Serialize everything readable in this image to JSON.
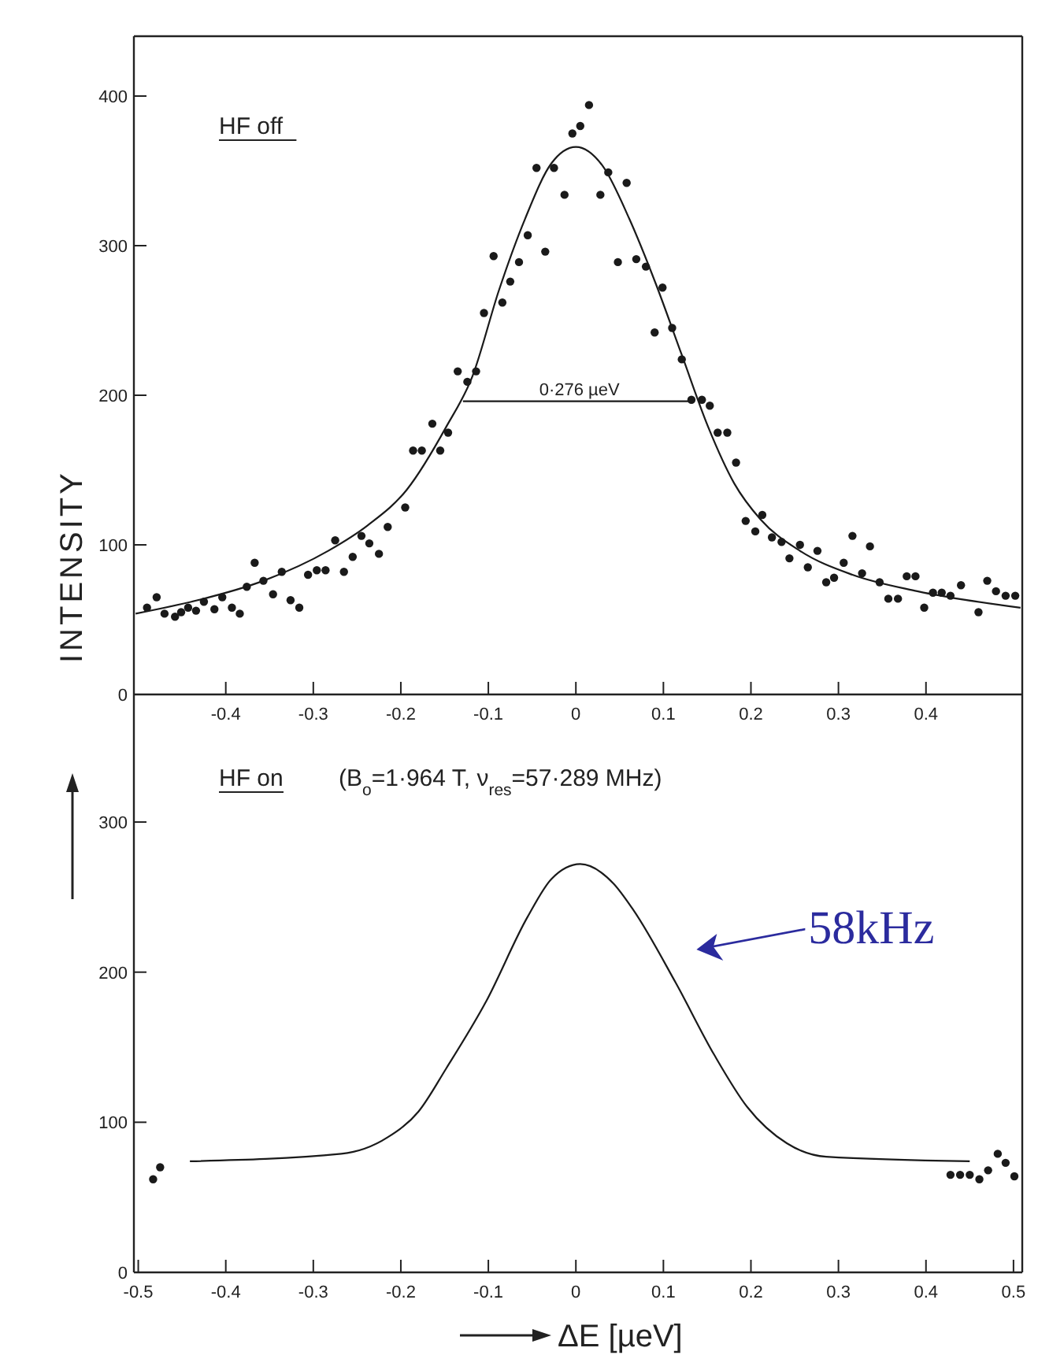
{
  "chart_data": [
    {
      "type": "scatter",
      "title": "HF off",
      "ylabel": "INTENSITY",
      "xlim": [
        -0.505,
        0.51
      ],
      "ylim": [
        0,
        440
      ],
      "xticks": [
        -0.4,
        -0.3,
        -0.2,
        -0.1,
        0,
        0.1,
        0.2,
        0.3,
        0.4
      ],
      "yticks": [
        0,
        100,
        200,
        300,
        400
      ],
      "grid": false,
      "annotations": [
        {
          "text": "0·276 µeV",
          "x": 0.004,
          "y": 196
        }
      ],
      "series": [
        {
          "color": "#1a1a1a",
          "marker": "circle",
          "x": [
            -0.49,
            -0.479,
            -0.47,
            -0.458,
            -0.451,
            -0.443,
            -0.434,
            -0.425,
            -0.413,
            -0.404,
            -0.393,
            -0.384,
            -0.376,
            -0.367,
            -0.357,
            -0.346,
            -0.336,
            -0.326,
            -0.316,
            -0.306,
            -0.296,
            -0.286,
            -0.275,
            -0.265,
            -0.255,
            -0.245,
            -0.236,
            -0.225,
            -0.215,
            -0.195,
            -0.186,
            -0.176,
            -0.164,
            -0.155,
            -0.146,
            -0.135,
            -0.124,
            -0.114,
            -0.105,
            -0.094,
            -0.084,
            -0.075,
            -0.065,
            -0.055,
            -0.045,
            -0.035,
            -0.025,
            -0.013,
            -0.004,
            0.005,
            0.015,
            0.028,
            0.037,
            0.048,
            0.058,
            0.069,
            0.08,
            0.09,
            0.099,
            0.11,
            0.121,
            0.132,
            0.144,
            0.153,
            0.162,
            0.173,
            0.183,
            0.194,
            0.205,
            0.213,
            0.224,
            0.235,
            0.244,
            0.256,
            0.265,
            0.276,
            0.286,
            0.295,
            0.306,
            0.316,
            0.327,
            0.336,
            0.347,
            0.357,
            0.368,
            0.378,
            0.388,
            0.398,
            0.408,
            0.418,
            0.428,
            0.44,
            0.46,
            0.47,
            0.48,
            0.491,
            0.502
          ],
          "values": [
            58,
            65,
            54,
            52,
            55,
            58,
            56,
            62,
            57,
            65,
            58,
            54,
            72,
            88,
            76,
            67,
            82,
            63,
            58,
            80,
            83,
            83,
            103,
            82,
            92,
            106,
            101,
            94,
            112,
            125,
            163,
            163,
            181,
            163,
            175,
            216,
            209,
            216,
            255,
            293,
            262,
            276,
            289,
            307,
            352,
            296,
            352,
            334,
            375,
            380,
            394,
            334,
            349,
            289,
            342,
            291,
            286,
            242,
            272,
            245,
            224,
            197,
            197,
            193,
            175,
            175,
            155,
            116,
            109,
            120,
            105,
            102,
            91,
            100,
            85,
            96,
            75,
            78,
            88,
            106,
            81,
            99,
            75,
            64,
            64,
            79,
            79,
            58,
            68,
            68,
            66,
            73,
            55,
            76,
            69,
            66,
            66
          ]
        },
        {
          "type": "line",
          "color": "#1a1a1a",
          "x": [
            -0.503,
            -0.432,
            -0.357,
            -0.283,
            -0.238,
            -0.193,
            -0.148,
            -0.118,
            -0.088,
            -0.058,
            -0.028,
            0,
            0.031,
            0.061,
            0.091,
            0.121,
            0.151,
            0.181,
            0.211,
            0.256,
            0.316,
            0.39,
            0.508
          ],
          "values": [
            54,
            63,
            76,
            96,
            113,
            137,
            179,
            213,
            270,
            318,
            355,
            366,
            353,
            318,
            275,
            227,
            179,
            141,
            117,
            96,
            80,
            69,
            58
          ]
        },
        {
          "type": "line",
          "color": "#1a1a1a",
          "x": [
            -0.129,
            0.136
          ],
          "values": [
            196,
            196
          ]
        }
      ]
    },
    {
      "type": "line",
      "title": "HF on",
      "subtitle": "(B$_{o}$=1·964 T, ν$_{res}$=57·289 MHz)",
      "xlabel": "ΔE [µeV]",
      "xlim": [
        -0.505,
        0.51
      ],
      "ylim": [
        0,
        385
      ],
      "xticks": [
        -0.5,
        -0.4,
        -0.3,
        -0.2,
        -0.1,
        0,
        0.1,
        0.2,
        0.3,
        0.4,
        0.5
      ],
      "yticks": [
        0,
        100,
        200,
        300
      ],
      "grid": false,
      "annotations": [
        "58kHz"
      ],
      "series": [
        {
          "type": "scatter",
          "color": "#1a1a1a",
          "marker": "circle",
          "x": [
            -0.483,
            -0.475,
            0.428,
            0.439,
            0.45,
            0.461,
            0.471,
            0.482,
            0.491,
            0.501
          ],
          "values": [
            62,
            70,
            65,
            65,
            65,
            62,
            68,
            79,
            73,
            64
          ]
        },
        {
          "color": "#1a1a1a",
          "x": [
            -0.441,
            -0.268,
            -0.215,
            -0.18,
            -0.148,
            -0.103,
            -0.055,
            -0.028,
            0.005,
            0.043,
            0.065,
            0.114,
            0.158,
            0.196,
            0.241,
            0.286,
            0.45
          ],
          "values": [
            74,
            79,
            90,
            107,
            136,
            180,
            237,
            262,
            272,
            259,
            242,
            193,
            145,
            110,
            86,
            77,
            74
          ]
        }
      ]
    }
  ]
}
